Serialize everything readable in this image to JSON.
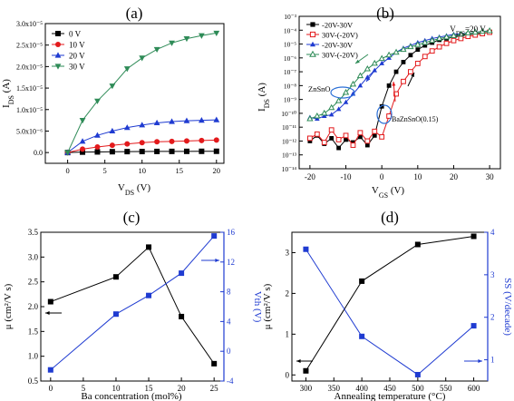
{
  "figure": {
    "panels": [
      {
        "id": "a",
        "letter": "(a)"
      },
      {
        "id": "b",
        "letter": "(b)"
      },
      {
        "id": "c",
        "letter": "(c)"
      },
      {
        "id": "d",
        "letter": "(d)"
      }
    ]
  },
  "chart_data": [
    {
      "panel": "(a)",
      "type": "line",
      "xlabel": "VDS (V)",
      "ylabel": "IDS (A)",
      "xlim": [
        -3,
        21
      ],
      "ylim": [
        -2.5e-06,
        3e-05
      ],
      "xticks": [
        0,
        5,
        10,
        15,
        20
      ],
      "yticks": [
        0,
        5e-06,
        1e-05,
        1.5e-05,
        2e-05,
        2.5e-05,
        3e-05
      ],
      "ytick_labels": [
        "0.0",
        "5.0x10⁻⁶",
        "1.0x10⁻⁵",
        "1.5x10⁻⁵",
        "2.0x10⁻⁵",
        "2.5x10⁻⁵",
        "3.0x10⁻⁵"
      ],
      "legend_position": "top-left",
      "x": [
        0,
        2,
        4,
        6,
        8,
        10,
        12,
        14,
        16,
        18,
        20
      ],
      "series": [
        {
          "name": "0 V",
          "color": "#000000",
          "marker": "square",
          "values": [
            0,
            1e-07,
            1.5e-07,
            2e-07,
            2.2e-07,
            2.4e-07,
            2.6e-07,
            2.7e-07,
            2.8e-07,
            2.9e-07,
            3e-07
          ]
        },
        {
          "name": "10 V",
          "color": "#e31a1c",
          "marker": "circle",
          "values": [
            0,
            8e-07,
            1.3e-06,
            1.7e-06,
            2e-06,
            2.3e-06,
            2.5e-06,
            2.6e-06,
            2.7e-06,
            2.8e-06,
            2.9e-06
          ]
        },
        {
          "name": "20 V",
          "color": "#1f3bd1",
          "marker": "triangle-up",
          "values": [
            0,
            2.6e-06,
            4e-06,
            5e-06,
            5.8e-06,
            6.4e-06,
            6.9e-06,
            7.2e-06,
            7.4e-06,
            7.5e-06,
            7.6e-06
          ]
        },
        {
          "name": "30 V",
          "color": "#2e8b57",
          "marker": "triangle-down",
          "values": [
            0,
            7.5e-06,
            1.2e-05,
            1.55e-05,
            1.95e-05,
            2.2e-05,
            2.4e-05,
            2.55e-05,
            2.65e-05,
            2.72e-05,
            2.78e-05
          ]
        }
      ]
    },
    {
      "panel": "(b)",
      "type": "line",
      "xlabel": "VGS (V)",
      "ylabel": "IDS (A)",
      "yscale": "log",
      "xlim": [
        -23,
        33
      ],
      "ylim_exp": [
        -14,
        -3
      ],
      "xticks": [
        -20,
        -10,
        0,
        10,
        20,
        30
      ],
      "ytick_labels": [
        "10⁻¹⁴",
        "10⁻¹³",
        "10⁻¹²",
        "10⁻¹¹",
        "10⁻¹⁰",
        "10⁻⁹",
        "10⁻⁸",
        "10⁻⁷",
        "10⁻⁶",
        "10⁻⁵",
        "10⁻⁴",
        "10⁻³"
      ],
      "legend_position": "top-left",
      "annotations": [
        "VDS=20 V",
        "ZnSnO",
        "BaZnSnO(0.15)"
      ],
      "series": [
        {
          "name": "-20V-30V",
          "color": "#000000",
          "marker": "square-filled",
          "x": [
            -20,
            -18,
            -16,
            -14,
            -12,
            -10,
            -8,
            -6,
            -4,
            -2,
            0,
            2,
            4,
            6,
            8,
            10,
            12,
            14,
            16,
            18,
            20,
            22,
            24,
            26,
            28,
            30
          ],
          "log10_values": [
            -12,
            -11.6,
            -12.2,
            -11.8,
            -12.5,
            -11.9,
            -12.1,
            -11.7,
            -12.3,
            -11.6,
            -9.5,
            -8.0,
            -7.0,
            -6.3,
            -5.8,
            -5.4,
            -5.1,
            -4.9,
            -4.7,
            -4.6,
            -4.5,
            -4.4,
            -4.3,
            -4.25,
            -4.2,
            -4.15
          ]
        },
        {
          "name": "30V-(-20V)",
          "color": "#e31a1c",
          "marker": "square-open",
          "x": [
            30,
            28,
            26,
            24,
            22,
            20,
            18,
            16,
            14,
            12,
            10,
            8,
            6,
            4,
            2,
            0,
            -2,
            -4,
            -6,
            -8,
            -10,
            -12,
            -14,
            -16,
            -18,
            -20
          ],
          "log10_values": [
            -4.15,
            -4.25,
            -4.35,
            -4.45,
            -4.6,
            -4.75,
            -4.95,
            -5.2,
            -5.5,
            -5.9,
            -6.4,
            -7.0,
            -7.7,
            -8.6,
            -10.2,
            -11.7,
            -11.3,
            -12.0,
            -11.4,
            -12.3,
            -11.6,
            -11.9,
            -11.2,
            -12.1,
            -11.5,
            -11.8
          ]
        },
        {
          "name": "-20V-30V",
          "color": "#1f3bd1",
          "marker": "triangle-filled",
          "x": [
            -20,
            -18,
            -16,
            -14,
            -12,
            -10,
            -8,
            -6,
            -4,
            -2,
            0,
            2,
            4,
            6,
            8,
            10,
            12,
            14,
            16,
            18,
            20,
            22,
            24,
            26,
            28,
            30
          ],
          "log10_values": [
            -10.3,
            -10.4,
            -10.2,
            -10.1,
            -9.7,
            -9.2,
            -8.6,
            -8.0,
            -7.4,
            -6.9,
            -6.4,
            -6.0,
            -5.6,
            -5.3,
            -5.1,
            -4.9,
            -4.75,
            -4.6,
            -4.5,
            -4.4,
            -4.3,
            -4.25,
            -4.2,
            -4.15,
            -4.1,
            -4.05
          ]
        },
        {
          "name": "30V-(-20V)",
          "color": "#2e8b57",
          "marker": "triangle-open",
          "x": [
            30,
            28,
            26,
            24,
            22,
            20,
            18,
            16,
            14,
            12,
            10,
            8,
            6,
            4,
            2,
            0,
            -2,
            -4,
            -6,
            -8,
            -10,
            -12,
            -14,
            -16,
            -18,
            -20
          ],
          "log10_values": [
            -4.05,
            -4.1,
            -4.15,
            -4.2,
            -4.3,
            -4.4,
            -4.5,
            -4.6,
            -4.75,
            -4.9,
            -5.05,
            -5.2,
            -5.4,
            -5.6,
            -5.8,
            -6.05,
            -6.4,
            -6.8,
            -7.3,
            -7.9,
            -8.5,
            -9.1,
            -9.6,
            -10.0,
            -10.2,
            -10.4
          ]
        }
      ]
    },
    {
      "panel": "(c)",
      "type": "line",
      "xlabel": "Ba concentration (mol%)",
      "ylabel": "μ (cm²/V s)",
      "ylabel_right": "Vth (V)",
      "xlim": [
        -1.5,
        26.5
      ],
      "ylim": [
        0.5,
        3.5
      ],
      "ylim_right": [
        -4,
        16
      ],
      "xticks": [
        0,
        5,
        10,
        15,
        20,
        25
      ],
      "yticks": [
        0.5,
        1.0,
        1.5,
        2.0,
        2.5,
        3.0,
        3.5
      ],
      "yticks_right": [
        -4,
        0,
        4,
        8,
        12,
        16
      ],
      "x": [
        0,
        10,
        15,
        20,
        25
      ],
      "series": [
        {
          "axis": "left",
          "color": "#000000",
          "marker": "square",
          "values": [
            2.1,
            2.6,
            3.2,
            1.8,
            0.85
          ]
        },
        {
          "axis": "right",
          "color": "#1f3bd1",
          "marker": "square",
          "values": [
            -2.5,
            5.0,
            7.5,
            10.5,
            15.5
          ]
        }
      ]
    },
    {
      "panel": "(d)",
      "type": "line",
      "xlabel": "Annealing temperature (°C)",
      "ylabel": "μ (cm²/V s)",
      "ylabel_right": "SS (V/decade)",
      "xlim": [
        275,
        625
      ],
      "ylim": [
        -0.15,
        3.5
      ],
      "ylim_right": [
        0.5,
        4
      ],
      "xticks": [
        300,
        350,
        400,
        450,
        500,
        550,
        600
      ],
      "yticks": [
        0,
        1,
        2,
        3
      ],
      "yticks_right": [
        1,
        2,
        3,
        4
      ],
      "x": [
        300,
        400,
        500,
        600
      ],
      "series": [
        {
          "axis": "left",
          "color": "#000000",
          "marker": "square",
          "values": [
            0.1,
            2.3,
            3.2,
            3.4
          ]
        },
        {
          "axis": "right",
          "color": "#1f3bd1",
          "marker": "square",
          "values": [
            3.6,
            1.55,
            0.65,
            1.8
          ]
        }
      ]
    }
  ]
}
